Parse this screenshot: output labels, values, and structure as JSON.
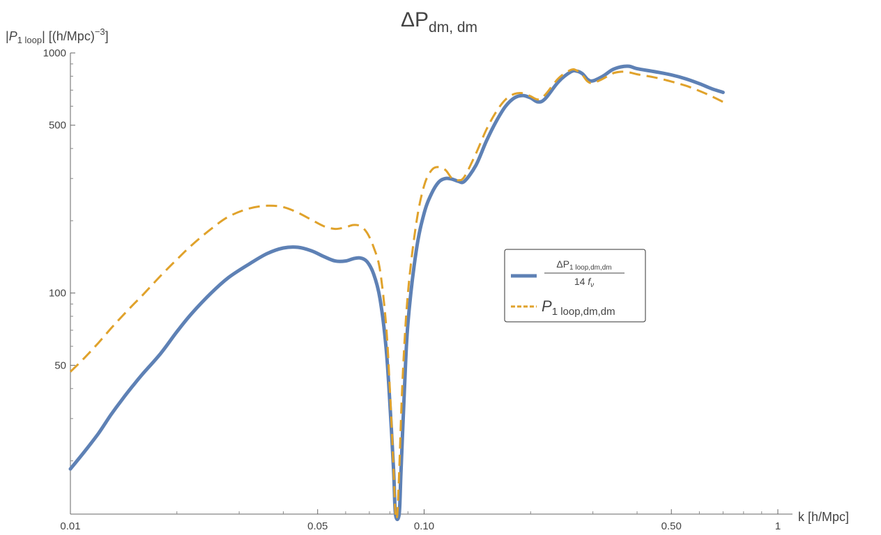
{
  "chart_data": {
    "type": "line",
    "title": {
      "base": "ΔP",
      "sub": "dm, dm"
    },
    "ylabel": {
      "open": "|",
      "p": "P",
      "sub": "1 loop",
      "mid": "| [(h/Mpc)",
      "sup": "−3",
      "close": "]"
    },
    "xlabel": "k [h/Mpc]",
    "xscale": "log",
    "yscale": "log",
    "xlim": [
      0.01,
      1.1
    ],
    "ylim": [
      12,
      1000
    ],
    "x_ticks": [
      {
        "value": 0.01,
        "label": "0.01"
      },
      {
        "value": 0.05,
        "label": "0.05"
      },
      {
        "value": 0.1,
        "label": "0.10"
      },
      {
        "value": 0.5,
        "label": "0.50"
      },
      {
        "value": 1,
        "label": "1"
      }
    ],
    "x_minor_ticks": [
      0.02,
      0.03,
      0.04,
      0.06,
      0.07,
      0.08,
      0.09,
      0.2,
      0.3,
      0.4,
      0.6,
      0.7,
      0.8,
      0.9
    ],
    "y_ticks": [
      {
        "value": 50,
        "label": "50"
      },
      {
        "value": 100,
        "label": "100"
      },
      {
        "value": 500,
        "label": "500"
      },
      {
        "value": 1000,
        "label": "1000"
      }
    ],
    "y_minor_ticks": [
      20,
      30,
      40,
      60,
      70,
      80,
      90,
      200,
      300,
      400,
      600,
      700,
      800,
      900
    ],
    "legend_placement": "center-right",
    "series": [
      {
        "legend": {
          "num_base": "ΔP",
          "num_sub": "1 loop,dm,dm",
          "den_base": "14 ",
          "den_f": "f",
          "den_sub": "ν"
        },
        "color": "#5E81B5",
        "style": "solid",
        "points": [
          [
            0.01,
            18.5
          ],
          [
            0.011,
            22
          ],
          [
            0.012,
            26
          ],
          [
            0.013,
            31
          ],
          [
            0.014,
            36
          ],
          [
            0.015,
            41
          ],
          [
            0.016,
            46
          ],
          [
            0.018,
            56
          ],
          [
            0.02,
            69
          ],
          [
            0.022,
            82
          ],
          [
            0.025,
            100
          ],
          [
            0.028,
            116
          ],
          [
            0.032,
            132
          ],
          [
            0.036,
            146
          ],
          [
            0.04,
            154
          ],
          [
            0.044,
            155
          ],
          [
            0.048,
            150
          ],
          [
            0.052,
            142
          ],
          [
            0.056,
            136
          ],
          [
            0.06,
            136
          ],
          [
            0.063,
            139
          ],
          [
            0.066,
            140
          ],
          [
            0.069,
            135
          ],
          [
            0.072,
            120
          ],
          [
            0.075,
            95
          ],
          [
            0.078,
            60
          ],
          [
            0.08,
            35
          ],
          [
            0.082,
            18
          ],
          [
            0.083,
            12
          ],
          [
            0.085,
            12
          ],
          [
            0.086,
            18
          ],
          [
            0.088,
            40
          ],
          [
            0.09,
            75
          ],
          [
            0.095,
            150
          ],
          [
            0.1,
            215
          ],
          [
            0.105,
            260
          ],
          [
            0.11,
            290
          ],
          [
            0.115,
            300
          ],
          [
            0.12,
            298
          ],
          [
            0.125,
            292
          ],
          [
            0.13,
            292
          ],
          [
            0.14,
            340
          ],
          [
            0.15,
            430
          ],
          [
            0.16,
            520
          ],
          [
            0.17,
            600
          ],
          [
            0.18,
            650
          ],
          [
            0.19,
            665
          ],
          [
            0.2,
            650
          ],
          [
            0.21,
            625
          ],
          [
            0.22,
            645
          ],
          [
            0.24,
            760
          ],
          [
            0.26,
            835
          ],
          [
            0.27,
            840
          ],
          [
            0.28,
            820
          ],
          [
            0.29,
            775
          ],
          [
            0.3,
            765
          ],
          [
            0.32,
            800
          ],
          [
            0.34,
            850
          ],
          [
            0.36,
            875
          ],
          [
            0.38,
            880
          ],
          [
            0.4,
            860
          ],
          [
            0.45,
            835
          ],
          [
            0.5,
            810
          ],
          [
            0.55,
            780
          ],
          [
            0.6,
            745
          ],
          [
            0.65,
            710
          ],
          [
            0.7,
            685
          ]
        ]
      },
      {
        "legend": {
          "base": "P",
          "sub": "1 loop,dm,dm"
        },
        "color": "#E0A22B",
        "style": "dashed",
        "points": [
          [
            0.01,
            47
          ],
          [
            0.011,
            54
          ],
          [
            0.012,
            62
          ],
          [
            0.013,
            71
          ],
          [
            0.014,
            80
          ],
          [
            0.015,
            89
          ],
          [
            0.016,
            98
          ],
          [
            0.018,
            118
          ],
          [
            0.02,
            138
          ],
          [
            0.022,
            158
          ],
          [
            0.025,
            185
          ],
          [
            0.028,
            208
          ],
          [
            0.032,
            225
          ],
          [
            0.036,
            231
          ],
          [
            0.04,
            228
          ],
          [
            0.044,
            216
          ],
          [
            0.048,
            202
          ],
          [
            0.052,
            190
          ],
          [
            0.056,
            185
          ],
          [
            0.06,
            188
          ],
          [
            0.063,
            192
          ],
          [
            0.066,
            190
          ],
          [
            0.069,
            178
          ],
          [
            0.072,
            155
          ],
          [
            0.075,
            125
          ],
          [
            0.078,
            75
          ],
          [
            0.08,
            40
          ],
          [
            0.082,
            18
          ],
          [
            0.083,
            12
          ],
          [
            0.084,
            12
          ],
          [
            0.085,
            18
          ],
          [
            0.087,
            45
          ],
          [
            0.09,
            100
          ],
          [
            0.095,
            195
          ],
          [
            0.1,
            280
          ],
          [
            0.105,
            325
          ],
          [
            0.11,
            335
          ],
          [
            0.115,
            325
          ],
          [
            0.12,
            300
          ],
          [
            0.125,
            295
          ],
          [
            0.13,
            305
          ],
          [
            0.14,
            380
          ],
          [
            0.15,
            480
          ],
          [
            0.16,
            570
          ],
          [
            0.17,
            640
          ],
          [
            0.18,
            675
          ],
          [
            0.19,
            680
          ],
          [
            0.2,
            660
          ],
          [
            0.21,
            640
          ],
          [
            0.22,
            670
          ],
          [
            0.24,
            785
          ],
          [
            0.26,
            850
          ],
          [
            0.27,
            845
          ],
          [
            0.28,
            810
          ],
          [
            0.29,
            760
          ],
          [
            0.3,
            750
          ],
          [
            0.32,
            780
          ],
          [
            0.34,
            820
          ],
          [
            0.36,
            835
          ],
          [
            0.38,
            830
          ],
          [
            0.4,
            815
          ],
          [
            0.45,
            790
          ],
          [
            0.5,
            760
          ],
          [
            0.55,
            730
          ],
          [
            0.6,
            695
          ],
          [
            0.65,
            660
          ],
          [
            0.7,
            625
          ]
        ]
      }
    ]
  }
}
